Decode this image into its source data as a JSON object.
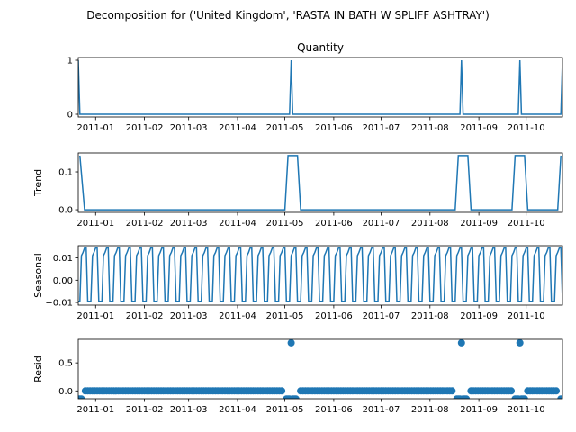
{
  "figure": {
    "suptitle": "Decomposition for ('United Kingdom', 'RASTA IN BATH W SPLIFF ASHTRAY')"
  },
  "chart_data": [
    {
      "type": "line",
      "title": "Quantity",
      "ylabel": "",
      "xlabel": "",
      "color": "#1f77b4",
      "x_ticks": [
        "2011-01",
        "2011-02",
        "2011-03",
        "2011-04",
        "2011-05",
        "2011-06",
        "2011-07",
        "2011-08",
        "2011-09",
        "2011-10"
      ],
      "y_ticks": [
        "0",
        "1"
      ],
      "xlim": [
        "2010-12-21",
        "2011-10-24"
      ],
      "ylim": [
        -0.05,
        1.05
      ],
      "x": [
        "2010-12-21",
        "2010-12-22",
        "2011-05-04",
        "2011-05-05",
        "2011-05-06",
        "2011-08-20",
        "2011-08-21",
        "2011-08-22",
        "2011-09-26",
        "2011-09-27",
        "2011-09-28",
        "2011-10-23",
        "2011-10-24"
      ],
      "y": [
        1,
        0,
        0,
        1,
        0,
        0,
        1,
        0,
        0,
        1,
        0,
        0,
        1
      ]
    },
    {
      "type": "line",
      "title": "",
      "ylabel": "Trend",
      "xlabel": "",
      "color": "#1f77b4",
      "x_ticks": [
        "2011-01",
        "2011-02",
        "2011-03",
        "2011-04",
        "2011-05",
        "2011-06",
        "2011-07",
        "2011-08",
        "2011-09",
        "2011-10"
      ],
      "y_ticks": [
        "0.0",
        "0.1"
      ],
      "xlim": [
        "2010-12-21",
        "2011-10-24"
      ],
      "ylim": [
        -0.007,
        0.15
      ],
      "x": [
        "2010-12-22",
        "2010-12-25",
        "2011-05-01",
        "2011-05-03",
        "2011-05-09",
        "2011-05-11",
        "2011-08-17",
        "2011-08-19",
        "2011-08-25",
        "2011-08-27",
        "2011-09-22",
        "2011-09-24",
        "2011-09-30",
        "2011-10-02",
        "2011-10-21",
        "2011-10-23"
      ],
      "y": [
        0.143,
        0,
        0,
        0.143,
        0.143,
        0,
        0,
        0.143,
        0.143,
        0,
        0,
        0.143,
        0.143,
        0,
        0,
        0.143
      ]
    },
    {
      "type": "line",
      "title": "",
      "ylabel": "Seasonal",
      "xlabel": "",
      "color": "#1f77b4",
      "x_ticks": [
        "2011-01",
        "2011-02",
        "2011-03",
        "2011-04",
        "2011-05",
        "2011-06",
        "2011-07",
        "2011-08",
        "2011-09",
        "2011-10"
      ],
      "y_ticks": [
        "−0.01",
        "0.00",
        "0.01"
      ],
      "xlim": [
        "2010-12-21",
        "2011-10-24"
      ],
      "ylim": [
        -0.0112,
        0.0155
      ],
      "period_days": 7,
      "pattern": [
        -0.0095,
        -0.0095,
        -0.0095,
        0.011,
        0.0125,
        0.0145,
        0.0145
      ]
    },
    {
      "type": "scatter",
      "title": "",
      "ylabel": "Resid",
      "xlabel": "",
      "color": "#1f77b4",
      "x_ticks": [
        "2011-01",
        "2011-02",
        "2011-03",
        "2011-04",
        "2011-05",
        "2011-06",
        "2011-07",
        "2011-08",
        "2011-09",
        "2011-10"
      ],
      "y_ticks": [
        "0.0",
        "0.5"
      ],
      "xlim": [
        "2010-12-21",
        "2011-10-24"
      ],
      "ylim": [
        -0.14,
        0.92
      ],
      "baseline": 0,
      "point_spacing_days": 1.5,
      "outliers": [
        {
          "x": "2011-05-05",
          "y": 0.857
        },
        {
          "x": "2011-08-21",
          "y": 0.857
        },
        {
          "x": "2011-09-27",
          "y": 0.857
        }
      ],
      "negatives": [
        {
          "x": "2010-12-21",
          "y": -0.143
        },
        {
          "x": "2010-12-22",
          "y": -0.143
        },
        {
          "x": "2010-12-23",
          "y": -0.143
        },
        {
          "x": "2011-05-02",
          "y": -0.143
        },
        {
          "x": "2011-05-03",
          "y": -0.143
        },
        {
          "x": "2011-05-04",
          "y": -0.143
        },
        {
          "x": "2011-05-06",
          "y": -0.143
        },
        {
          "x": "2011-05-07",
          "y": -0.143
        },
        {
          "x": "2011-05-08",
          "y": -0.143
        },
        {
          "x": "2011-08-18",
          "y": -0.143
        },
        {
          "x": "2011-08-19",
          "y": -0.143
        },
        {
          "x": "2011-08-20",
          "y": -0.143
        },
        {
          "x": "2011-08-22",
          "y": -0.143
        },
        {
          "x": "2011-08-23",
          "y": -0.143
        },
        {
          "x": "2011-08-24",
          "y": -0.143
        },
        {
          "x": "2011-09-24",
          "y": -0.143
        },
        {
          "x": "2011-09-25",
          "y": -0.143
        },
        {
          "x": "2011-09-26",
          "y": -0.143
        },
        {
          "x": "2011-09-28",
          "y": -0.143
        },
        {
          "x": "2011-09-29",
          "y": -0.143
        },
        {
          "x": "2011-09-30",
          "y": -0.143
        },
        {
          "x": "2011-10-23",
          "y": -0.143
        },
        {
          "x": "2011-10-24",
          "y": -0.143
        }
      ]
    }
  ]
}
